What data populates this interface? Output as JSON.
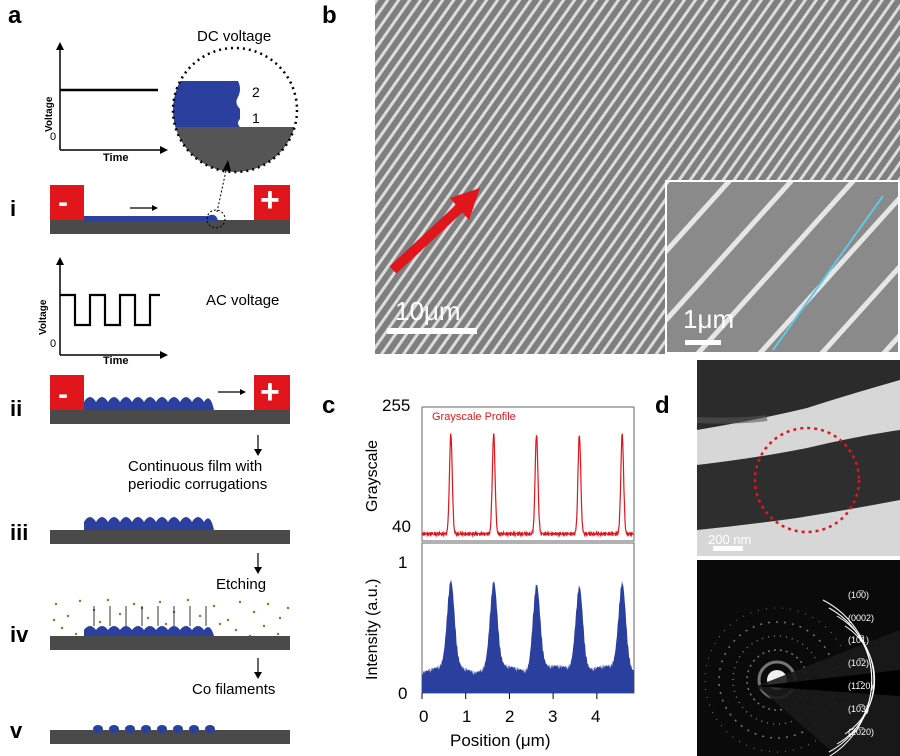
{
  "panels": {
    "a": "a",
    "b": "b",
    "c": "c",
    "d": "d"
  },
  "steps": [
    "i",
    "ii",
    "iii",
    "iv",
    "v"
  ],
  "panel_a": {
    "dc_plot": {
      "ylabel": "Voltage",
      "xlabel": "Time",
      "zero": "0"
    },
    "dc_title": "DC voltage",
    "zoom_labels": [
      "2",
      "1"
    ],
    "ac_plot": {
      "ylabel": "Voltage",
      "xlabel": "Time",
      "zero": "0"
    },
    "ac_title": "AC voltage",
    "minus": "-",
    "plus": "+",
    "note_ii_line1": "Continuous film with",
    "note_ii_line2": "periodic corrugations",
    "note_iii": "Etching",
    "note_iv": "Co filaments",
    "colors": {
      "electrode": "#e0161c",
      "film": "#2a3f9e",
      "substrate": "#4a4a4a",
      "etchant": "#b5651d"
    }
  },
  "panel_b": {
    "scalebar": "10μm",
    "inset_scalebar": "1μm"
  },
  "panel_c": {
    "top": {
      "ylabel": "Grayscale",
      "yticks": [
        "255",
        "40"
      ],
      "legend": "Grayscale Profile"
    },
    "bottom": {
      "ylabel": "Intensity (a.u.)",
      "yticks": [
        "1",
        "0"
      ]
    },
    "xlabel": "Position (μm)",
    "xticks": [
      "0",
      "1",
      "2",
      "3",
      "4"
    ]
  },
  "panel_d": {
    "scalebar": "200 nm",
    "rings": [
      "(10̅0)",
      "(0002)",
      "(10̅1)",
      "(10̅2)",
      "(11̅20)",
      "(10̅3)",
      "(20̅20)"
    ]
  }
}
